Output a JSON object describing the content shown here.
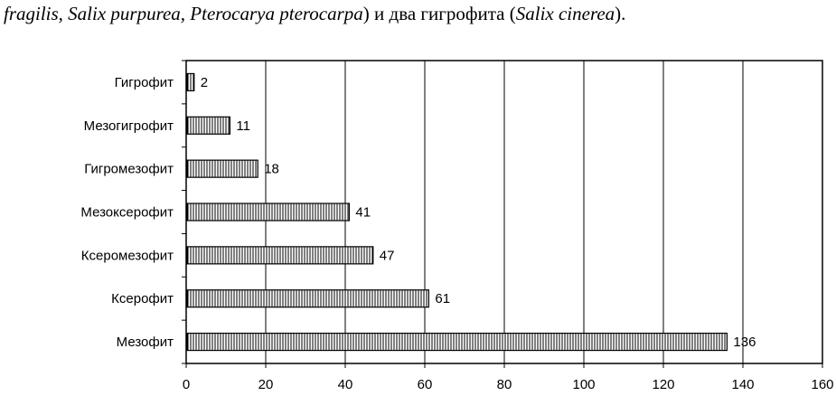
{
  "caption": {
    "part1": "fragilis, Salix purpurea, Pterocarya pterocarpa",
    "part2": ") и два гигрофита (",
    "part3": "Salix cinerea",
    "part4": ")."
  },
  "chart_data": {
    "type": "bar",
    "orientation": "horizontal",
    "categories": [
      "Гигрофит",
      "Мезогигрофит",
      "Гигромезофит",
      "Мезоксерофит",
      "Ксеромезофит",
      "Ксерофит",
      "Мезофит"
    ],
    "values": [
      2,
      11,
      18,
      41,
      47,
      61,
      136
    ],
    "data_labels": [
      "2",
      "11",
      "18",
      "41",
      "47",
      "61",
      "136"
    ],
    "xlim": [
      0,
      160
    ],
    "x_ticks": [
      0,
      20,
      40,
      60,
      80,
      100,
      120,
      140,
      160
    ],
    "x_tick_labels": [
      "0",
      "20",
      "40",
      "60",
      "80",
      "100",
      "120",
      "140",
      "160"
    ],
    "grid": "vertical",
    "legend": "none",
    "bar_fill": "vertical-hatch",
    "colors": {
      "bar_stroke": "#000000",
      "bar_fill": "#ffffff",
      "grid": "#000000"
    }
  }
}
